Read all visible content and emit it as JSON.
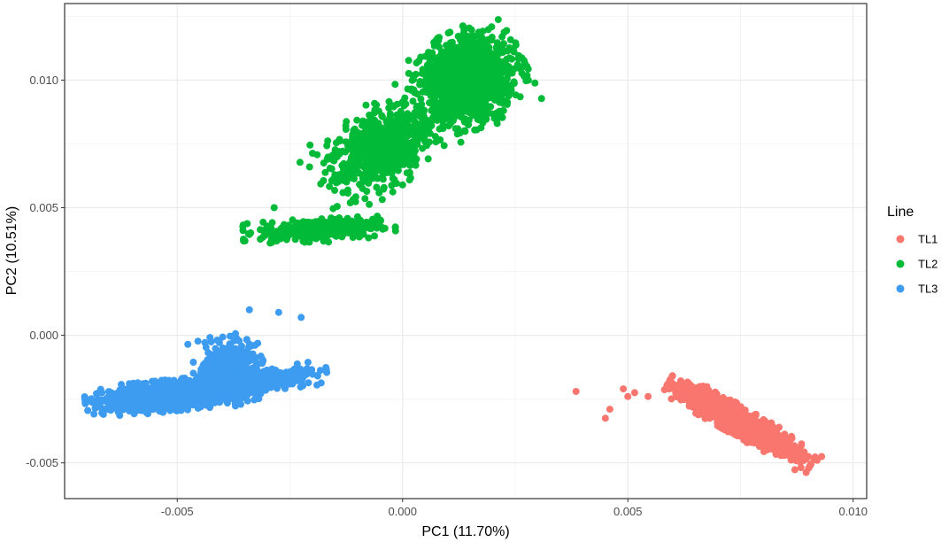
{
  "chart_data": {
    "type": "scatter",
    "xlabel": "PC1 (11.70%)",
    "ylabel": "PC2 (10.51%)",
    "xlim": [
      -0.0075,
      0.0103
    ],
    "ylim": [
      -0.0064,
      0.013
    ],
    "x_ticks": [
      -0.005,
      0.0,
      0.005,
      0.01
    ],
    "x_tick_labels": [
      "-0.005",
      "0.000",
      "0.005",
      "0.010"
    ],
    "y_ticks": [
      -0.005,
      0.0,
      0.005,
      0.01
    ],
    "y_tick_labels": [
      "-0.005",
      "0.000",
      "0.005",
      "0.010"
    ],
    "grid": true,
    "legend": {
      "title": "Line",
      "position": "right"
    },
    "series": [
      {
        "name": "TL1",
        "color": "#f8766d",
        "clusters": [
          {
            "center": [
              0.0075,
              -0.0034
            ],
            "spread": [
              0.0007,
              0.00022
            ],
            "angle": -0.52,
            "count": 1400
          }
        ],
        "points": [
          [
            0.00385,
            -0.0022
          ],
          [
            0.0045,
            -0.00325
          ],
          [
            0.0046,
            -0.0029
          ],
          [
            0.0049,
            -0.0021
          ],
          [
            0.005,
            -0.0024
          ],
          [
            0.00515,
            -0.00225
          ],
          [
            0.0093,
            -0.00475
          ],
          [
            0.0092,
            -0.0049
          ],
          [
            0.00545,
            -0.0024
          ],
          [
            0.00595,
            -0.002
          ]
        ]
      },
      {
        "name": "TL2",
        "color": "#00ba38",
        "clusters": [
          {
            "center": [
              -0.00185,
              0.00415
            ],
            "spread": [
              0.00065,
              0.0002
            ],
            "angle": 0.05,
            "count": 380
          },
          {
            "center": [
              -0.00045,
              0.0074
            ],
            "spread": [
              0.00065,
              0.00065
            ],
            "angle": 0.62,
            "count": 700
          },
          {
            "center": [
              0.00145,
              0.01005
            ],
            "spread": [
              0.0005,
              0.00075
            ],
            "angle": 0.45,
            "count": 1300
          }
        ],
        "points": [
          [
            -0.00285,
            0.005
          ],
          [
            -0.0007,
            0.00445
          ],
          [
            -0.00145,
            0.00505
          ],
          [
            0.0021,
            0.0083
          ],
          [
            0.0002,
            0.00965
          ],
          [
            5e-05,
            0.0093
          ],
          [
            -0.00145,
            0.007
          ],
          [
            -0.00175,
            0.00675
          ]
        ]
      },
      {
        "name": "TL3",
        "color": "#3d9cf0",
        "clusters": [
          {
            "center": [
              -0.0051,
              -0.00235
            ],
            "spread": [
              0.00075,
              0.00024
            ],
            "angle": 0.1,
            "count": 1500
          },
          {
            "center": [
              -0.00385,
              -0.00135
            ],
            "spread": [
              0.0003,
              0.00055
            ],
            "angle": 0.3,
            "count": 450
          },
          {
            "center": [
              -0.0031,
              -0.0018
            ],
            "spread": [
              0.00055,
              0.00018
            ],
            "angle": 0.15,
            "count": 350
          }
        ],
        "points": [
          [
            -0.0034,
            0.001
          ],
          [
            -0.00275,
            0.0009
          ],
          [
            -0.00225,
            0.0007
          ],
          [
            -0.0019,
            -0.00195
          ],
          [
            -0.00215,
            -0.00145
          ],
          [
            -0.00235,
            -0.0016
          ],
          [
            -0.00245,
            -0.0018
          ]
        ]
      }
    ]
  }
}
